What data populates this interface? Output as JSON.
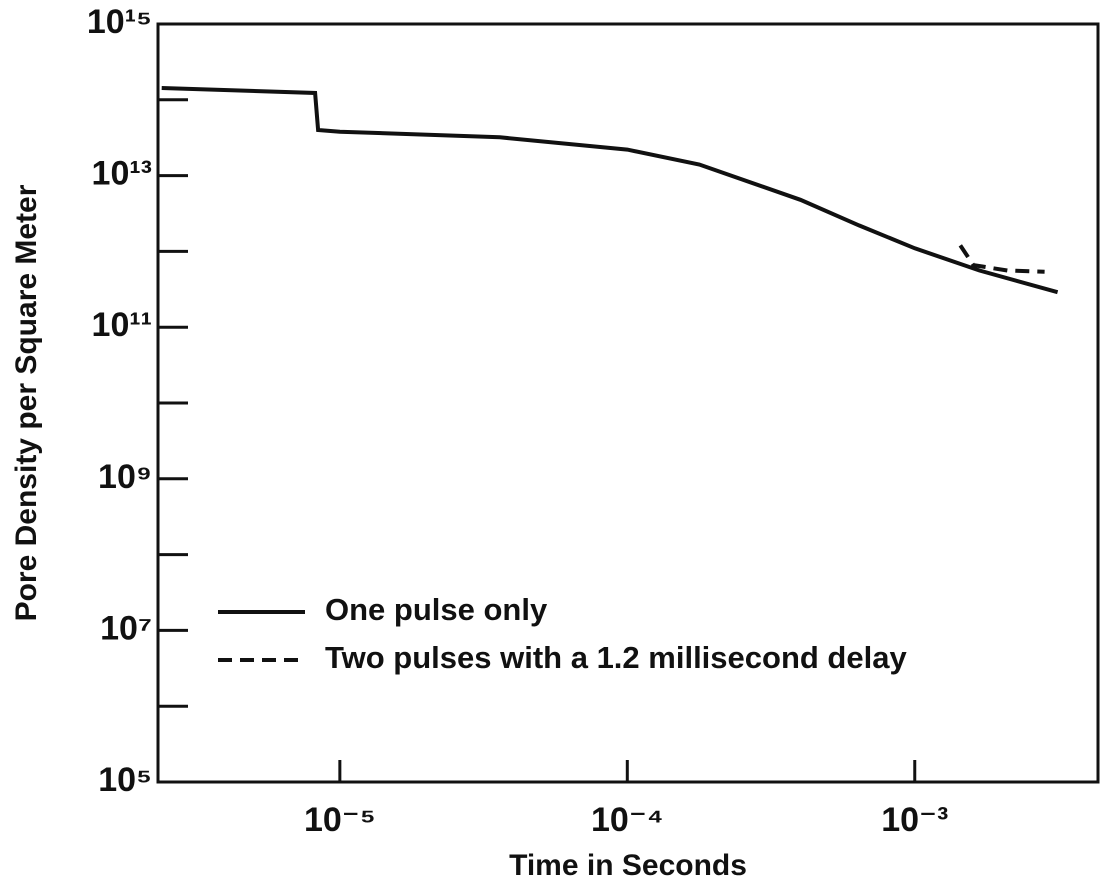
{
  "chart_data": {
    "type": "line",
    "xlabel": "Time in Seconds",
    "ylabel": "Pore Density per Square Meter",
    "xscale": "log",
    "yscale": "log",
    "xlim": [
      2.33e-06,
      0.00434
    ],
    "ylim": [
      100000.0,
      1000000000000000.0
    ],
    "xticks": [
      {
        "value": 1e-05,
        "label": "10⁻⁵"
      },
      {
        "value": 0.0001,
        "label": "10⁻⁴"
      },
      {
        "value": 0.001,
        "label": "10⁻³"
      }
    ],
    "yticks": [
      {
        "value": 100000.0,
        "label": "10⁵"
      },
      {
        "value": 10000000.0,
        "label": "10⁷"
      },
      {
        "value": 1000000000.0,
        "label": "10⁹"
      },
      {
        "value": 100000000000.0,
        "label": "10¹¹"
      },
      {
        "value": 10000000000000.0,
        "label": "10¹³"
      },
      {
        "value": 1000000000000000.0,
        "label": "10¹⁵"
      }
    ],
    "yminor_ticks": [
      1000000.0,
      100000000.0,
      10000000000.0,
      1000000000000.0,
      100000000000000.0
    ],
    "legend": "lower left",
    "series": [
      {
        "name": "One pulse only",
        "color": "#111111",
        "dash": "solid",
        "x": [
          2.4e-06,
          8.2e-06,
          8.4e-06,
          1e-05,
          3.6e-05,
          0.0001,
          0.000178,
          0.0004,
          0.00064,
          0.001,
          0.00168,
          0.00314
        ],
        "values": [
          143000000000000.0,
          123000000000000.0,
          40000000000000.0,
          38000000000000.0,
          32000000000000.0,
          22000000000000.0,
          14000000000000.0,
          4800000000000.0,
          2200000000000.0,
          1100000000000.0,
          560000000000.0,
          290000000000.0
        ]
      },
      {
        "name": "Two pulses with a 1.2 millisecond delay",
        "color": "#111111",
        "dash": "dashed",
        "x": [
          0.00144,
          0.0016,
          0.0021,
          0.00283
        ],
        "values": [
          1200000000000.0,
          660000000000.0,
          560000000000.0,
          540000000000.0
        ]
      }
    ]
  }
}
